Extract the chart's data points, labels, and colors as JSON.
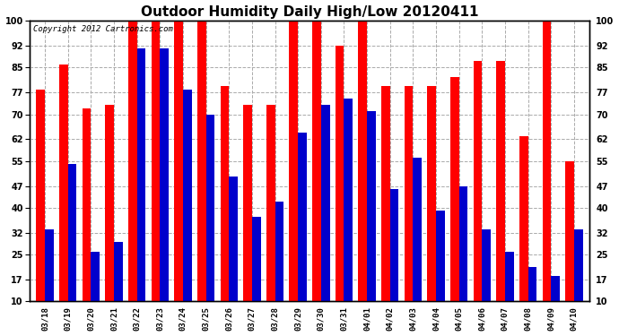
{
  "title": "Outdoor Humidity Daily High/Low 20120411",
  "copyright": "Copyright 2012 Cartronics.com",
  "labels": [
    "03/18",
    "03/19",
    "03/20",
    "03/21",
    "03/22",
    "03/23",
    "03/24",
    "03/25",
    "03/26",
    "03/27",
    "03/28",
    "03/29",
    "03/30",
    "03/31",
    "04/01",
    "04/02",
    "04/03",
    "04/04",
    "04/05",
    "04/06",
    "04/07",
    "04/08",
    "04/09",
    "04/10"
  ],
  "highs": [
    78,
    86,
    72,
    73,
    100,
    100,
    100,
    100,
    79,
    73,
    73,
    100,
    100,
    92,
    100,
    79,
    79,
    79,
    82,
    87,
    87,
    63,
    100,
    55
  ],
  "lows": [
    33,
    54,
    26,
    29,
    91,
    91,
    78,
    70,
    50,
    37,
    42,
    64,
    73,
    75,
    71,
    46,
    56,
    39,
    47,
    33,
    26,
    21,
    18,
    33
  ],
  "high_color": "#ff0000",
  "low_color": "#0000cc",
  "bg_color": "#ffffff",
  "ylim_min": 10,
  "ylim_max": 100,
  "yticks": [
    10,
    17,
    25,
    32,
    40,
    47,
    55,
    62,
    70,
    77,
    85,
    92,
    100
  ],
  "grid_color": "#aaaaaa",
  "title_fontsize": 11,
  "copyright_fontsize": 6.5,
  "bar_width": 0.38,
  "bar_bottom": 10
}
